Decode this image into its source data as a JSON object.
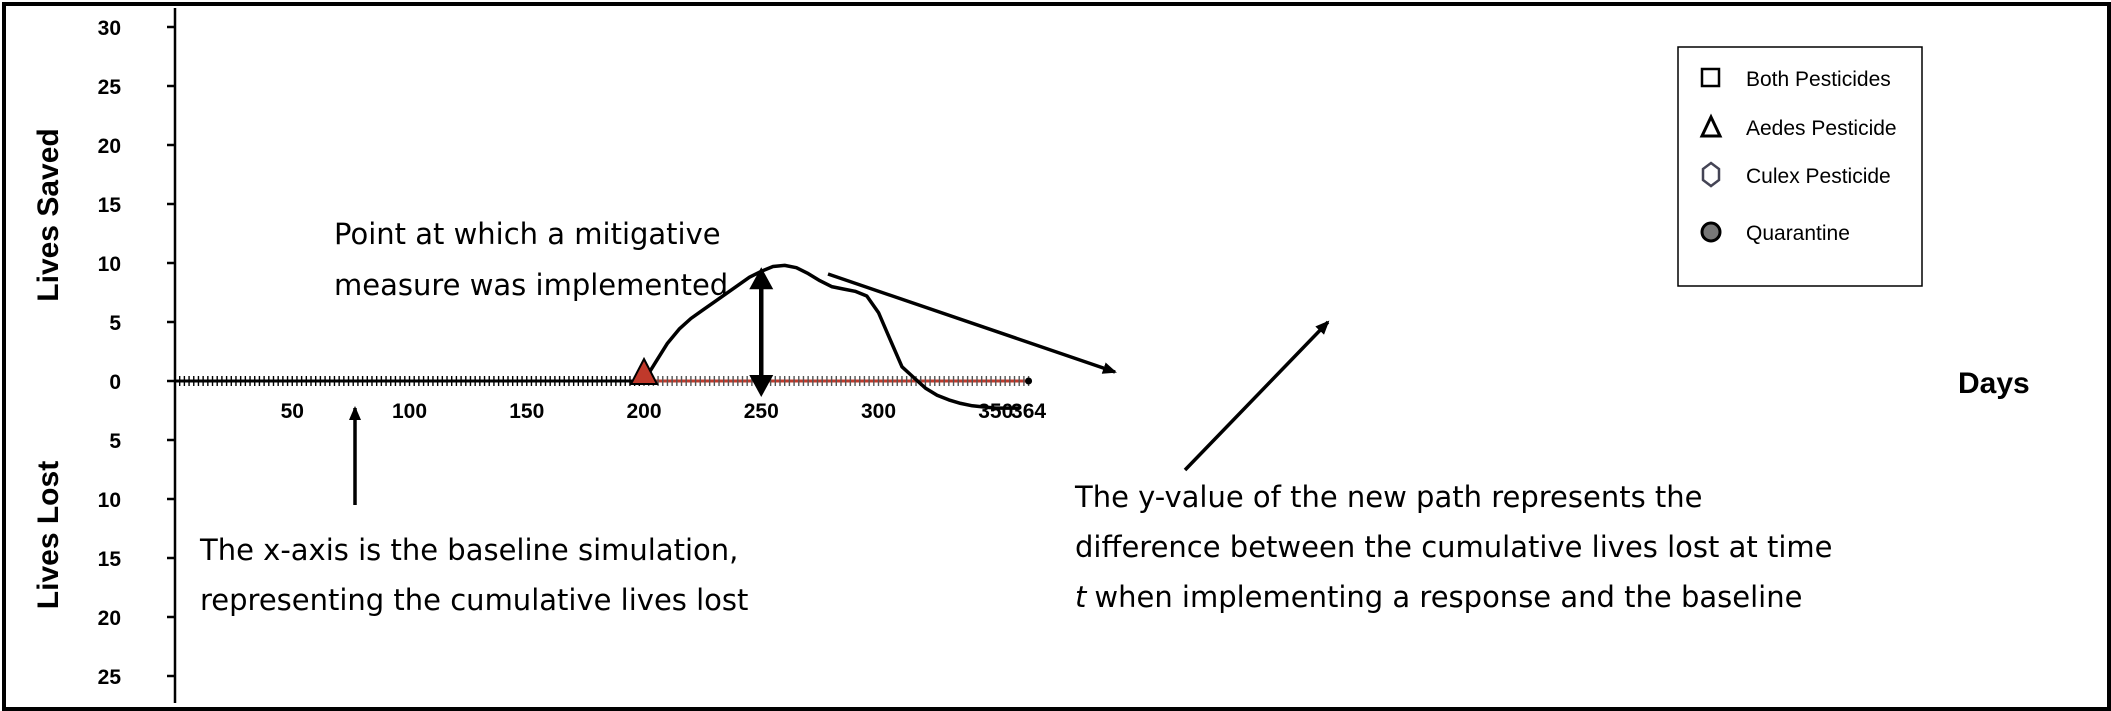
{
  "chart_data": {
    "type": "line",
    "xlabel": "Days",
    "ylabel_top": "Lives Saved",
    "ylabel_bottom": "Lives Lost",
    "x_ticks": [
      50,
      100,
      150,
      200,
      250,
      300,
      350,
      364
    ],
    "y_ticks_saved": [
      30,
      25,
      20,
      15,
      10,
      5,
      0
    ],
    "y_ticks_lost": [
      5,
      10,
      15,
      20,
      25
    ],
    "xlim": [
      0,
      364
    ],
    "ylim": [
      -26,
      30
    ],
    "grid": false,
    "legend_position": "top-right",
    "legend": [
      {
        "label": "Both Pesticides",
        "marker": "square"
      },
      {
        "label": "Aedes Pesticide",
        "marker": "triangle"
      },
      {
        "label": "Culex Pesticide",
        "marker": "hexagon"
      },
      {
        "label": "Quarantine",
        "marker": "circle"
      }
    ],
    "series": [
      {
        "marker": "triangle",
        "color": "#c0392b",
        "x": [
          200,
          205,
          210,
          215,
          220,
          225,
          230,
          235,
          240,
          245,
          250,
          255,
          260,
          265,
          270,
          275,
          280,
          285,
          290,
          295,
          300,
          305,
          310,
          315,
          320,
          325,
          330,
          335,
          340,
          345,
          350,
          355,
          360
        ],
        "y": [
          0,
          1.6,
          3.2,
          4.4,
          5.3,
          6.0,
          6.7,
          7.4,
          8.1,
          8.8,
          9.3,
          9.7,
          9.8,
          9.6,
          9.1,
          8.5,
          8.0,
          7.8,
          7.6,
          7.2,
          5.8,
          3.5,
          1.2,
          0.3,
          -0.6,
          -1.2,
          -1.6,
          -1.9,
          -2.1,
          -2.2,
          -2.3,
          -2.3,
          -2.3
        ]
      }
    ],
    "baseline": {
      "x_start": 0,
      "x_end": 364,
      "y": 0,
      "color_before": "#000000",
      "color_after": "#c0392b"
    },
    "intervention_marker": {
      "x": 200,
      "y": 0,
      "marker": "triangle",
      "color": "#c0392b"
    },
    "annotations": {
      "intervention": [
        "Point at which a mitigative",
        "measure was implemented"
      ],
      "baseline": [
        "The x-axis is the baseline simulation,",
        "representing the cumulative lives lost"
      ],
      "difference": [
        "The y-value of the new path represents  the",
        "difference between the cumulative lives lost at time",
        "when implementing a response and the baseline"
      ],
      "difference_italic": "t"
    }
  }
}
